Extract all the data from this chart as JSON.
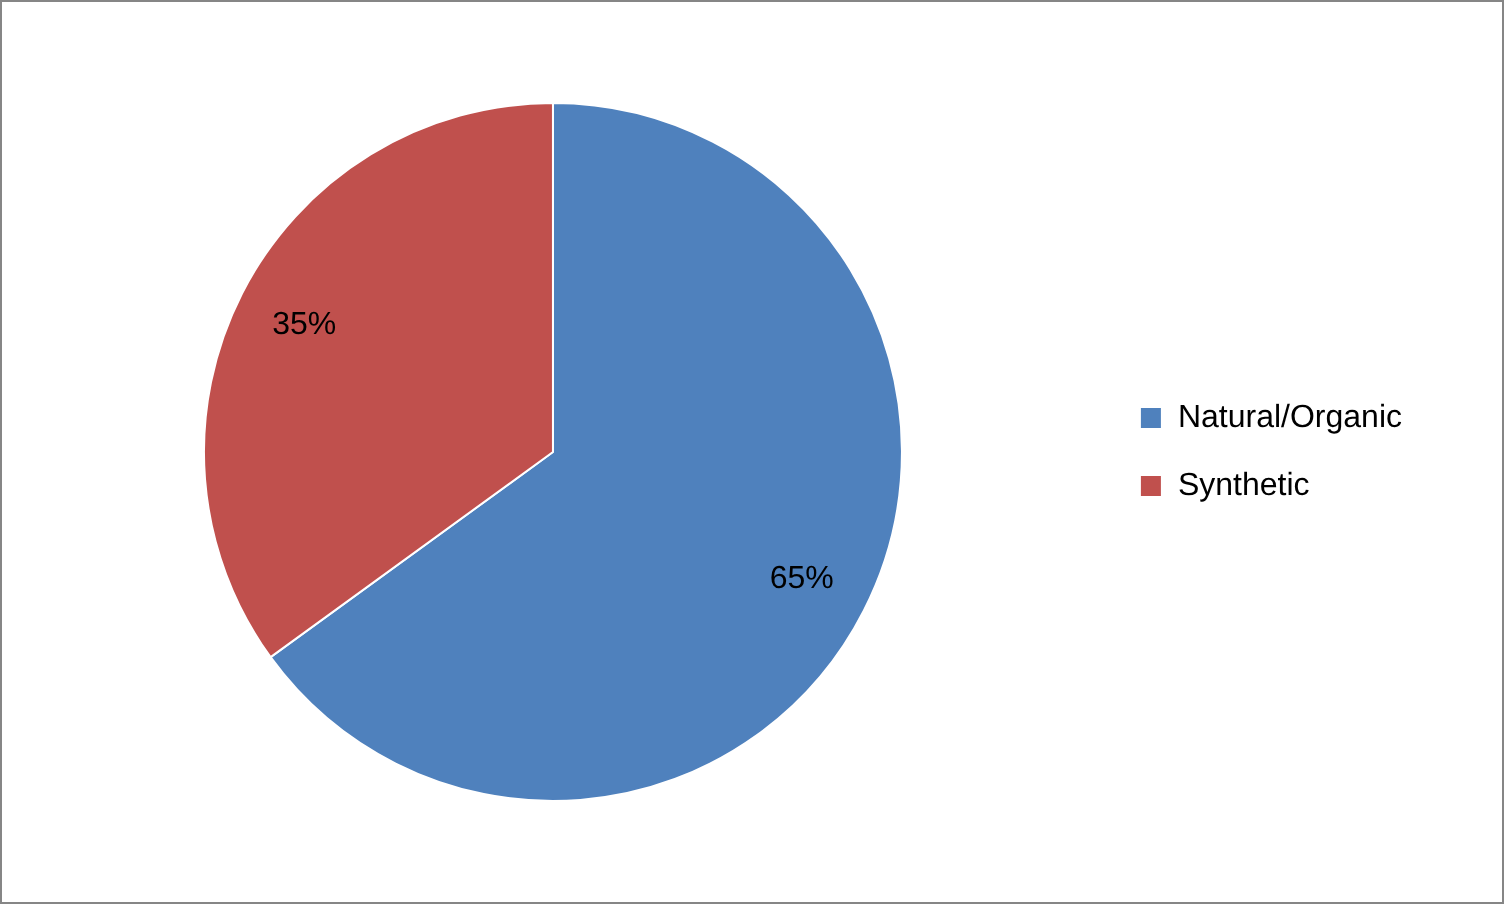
{
  "chart_data": {
    "type": "pie",
    "categories": [
      "Natural/Organic",
      "Synthetic"
    ],
    "values": [
      65,
      35
    ],
    "colors": [
      "#4f81bd",
      "#c0504d"
    ],
    "value_labels": [
      "65%",
      "35%"
    ],
    "legend": "right"
  }
}
